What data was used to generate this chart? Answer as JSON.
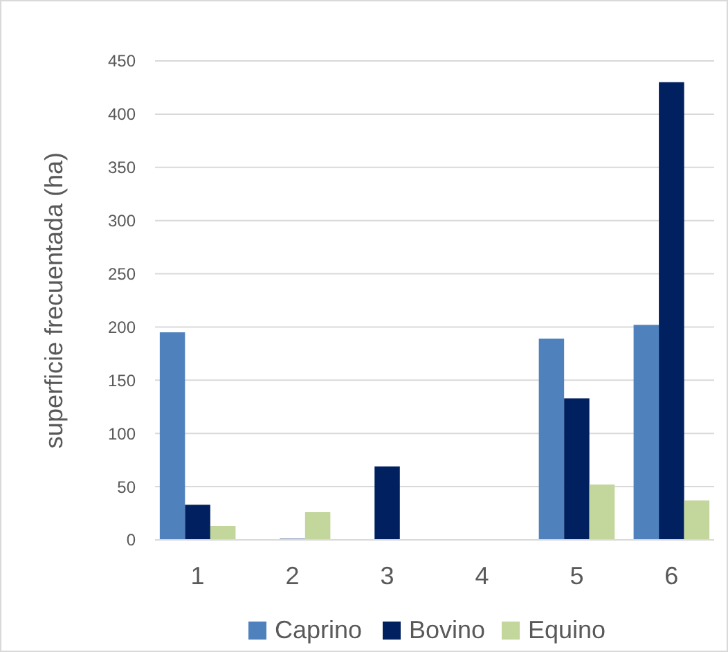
{
  "chart_data": {
    "type": "bar",
    "ylabel": "superficie frecuentada (ha)",
    "categories": [
      "1",
      "2",
      "3",
      "4",
      "5",
      "6"
    ],
    "series": [
      {
        "name": "Caprino",
        "color": "#4f81bd",
        "values": [
          195,
          0,
          0,
          0,
          189,
          202
        ]
      },
      {
        "name": "Bovino",
        "color": "#002060",
        "values": [
          33,
          1,
          69,
          0,
          133,
          430
        ]
      },
      {
        "name": "Equino",
        "color": "#c3d69b",
        "values": [
          13,
          26,
          0,
          0,
          52,
          37
        ]
      }
    ],
    "ylim": [
      0,
      450
    ],
    "yticks": [
      0,
      50,
      100,
      150,
      200,
      250,
      300,
      350,
      400,
      450
    ],
    "grid": "y",
    "legend": "bottom"
  }
}
